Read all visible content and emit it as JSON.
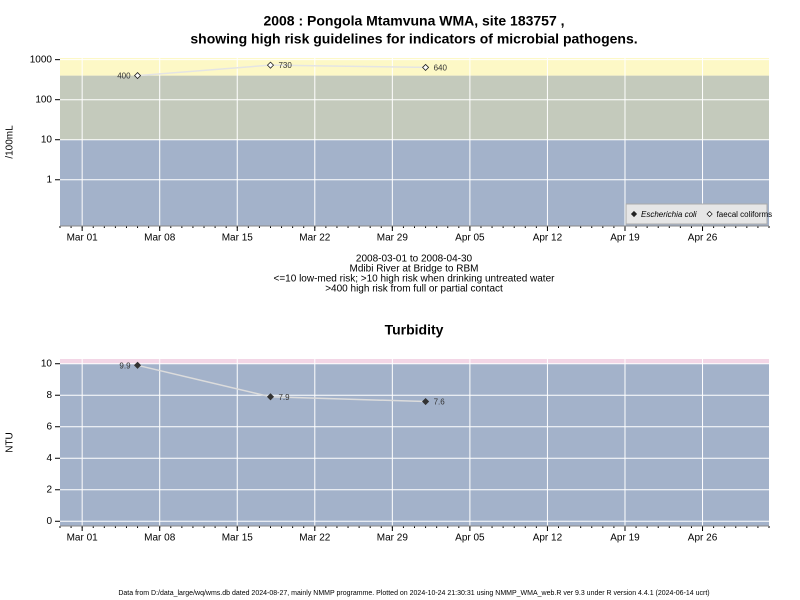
{
  "title": [
    "2008 : Pongola Mtamvuna WMA, site 183757 ,",
    "showing high risk guidelines for indicators of microbial pathogens."
  ],
  "footer": "Data from D:/data_large/wq/wms.db dated 2024-08-27, mainly NMMP programme. Plotted on 2024-10-24 21:30:31 using NMMP_WMA_web.R ver 9.3 under R version 4.4.1 (2024-06-14 ucrt)",
  "chart_data": [
    {
      "type": "line",
      "log_scale": true,
      "grid": true,
      "legend": "bottom-right",
      "ylabel": "/100mL",
      "subtitle": [
        "2008-03-01 to 2008-04-30",
        "Mdibi River at Bridge to RBM",
        "<=10 low-med risk; >10 high risk when drinking untreated water",
        ">400 high risk from full or partial contact"
      ],
      "xlim": [
        "2008-02-28",
        "2008-05-02"
      ],
      "xticks": [
        {
          "value": "2008-03-01",
          "label": "Mar 01"
        },
        {
          "value": "2008-03-08",
          "label": "Mar 08"
        },
        {
          "value": "2008-03-15",
          "label": "Mar 15"
        },
        {
          "value": "2008-03-22",
          "label": "Mar 22"
        },
        {
          "value": "2008-03-29",
          "label": "Mar 29"
        },
        {
          "value": "2008-04-05",
          "label": "Apr 05"
        },
        {
          "value": "2008-04-12",
          "label": "Apr 12"
        },
        {
          "value": "2008-04-19",
          "label": "Apr 19"
        },
        {
          "value": "2008-04-26",
          "label": "Apr 26"
        }
      ],
      "ylim": [
        0.07,
        1100
      ],
      "yticks": [
        1,
        10,
        100,
        1000
      ],
      "thresholds": [
        10,
        400
      ],
      "band_colors": [
        "#a3b2ca",
        "#c4cabc",
        "#fdf8c6"
      ],
      "series": [
        {
          "name": "Escherichia coli",
          "marker": "filled",
          "color": "#222222",
          "x": [],
          "values": []
        },
        {
          "name": "faecal coliforms",
          "marker": "open",
          "color": "#222222",
          "line_color": "#e4e4e4",
          "x": [
            "2008-03-06",
            "2008-03-18",
            "2008-04-01"
          ],
          "values": [
            400,
            730,
            640
          ]
        }
      ]
    },
    {
      "type": "line",
      "log_scale": false,
      "grid": true,
      "title": "Turbidity",
      "ylabel": "NTU",
      "xlim": [
        "2008-02-28",
        "2008-05-02"
      ],
      "xticks": [
        {
          "value": "2008-03-01",
          "label": "Mar 01"
        },
        {
          "value": "2008-03-08",
          "label": "Mar 08"
        },
        {
          "value": "2008-03-15",
          "label": "Mar 15"
        },
        {
          "value": "2008-03-22",
          "label": "Mar 22"
        },
        {
          "value": "2008-03-29",
          "label": "Mar 29"
        },
        {
          "value": "2008-04-05",
          "label": "Apr 05"
        },
        {
          "value": "2008-04-12",
          "label": "Apr 12"
        },
        {
          "value": "2008-04-19",
          "label": "Apr 19"
        },
        {
          "value": "2008-04-26",
          "label": "Apr 26"
        }
      ],
      "ylim": [
        -0.3,
        10.3
      ],
      "yticks": [
        0,
        2,
        4,
        6,
        8,
        10
      ],
      "thresholds": [
        10
      ],
      "band_colors": [
        "#a3b2ca",
        "#f3d6e6"
      ],
      "series": [
        {
          "marker": "filled",
          "color": "#333333",
          "line_color": "#dcdcdc",
          "x": [
            "2008-03-06",
            "2008-03-18",
            "2008-04-01"
          ],
          "values": [
            9.9,
            7.9,
            7.6
          ]
        }
      ]
    }
  ]
}
